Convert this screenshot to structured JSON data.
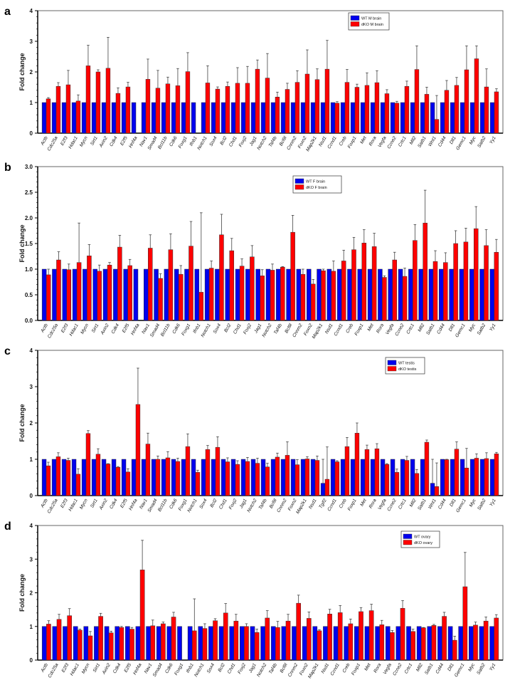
{
  "colors": {
    "wt": "#0000ee",
    "dko": "#ff0000"
  },
  "chart_data": [
    {
      "type": "bar",
      "panel": "a",
      "ylabel": "Fold change",
      "ylim": [
        0,
        4
      ],
      "yticks": [
        "0",
        "1",
        "2",
        "3",
        "4"
      ],
      "legend_placement": "top-right",
      "categories": [
        "Actb",
        "Cdc25a",
        "E2f3",
        "Hdac1",
        "Mycn",
        "Sirt1",
        "Axin2",
        "Cdk4",
        "E2f5",
        "Hnf4a",
        "Nav1",
        "Smad4",
        "Bcl11b",
        "Cdk6",
        "Foxg1",
        "Ifnb1",
        "Notch1",
        "Sox4",
        "Bcl2",
        "Chd1",
        "Foxj2",
        "Jag1",
        "Notch2",
        "Taf4b",
        "Bcl9l",
        "Cnnm2",
        "Foxn2",
        "Map2k1",
        "Nsd1",
        "Ccnd1",
        "Creb",
        "Foxp1",
        "Met",
        "Rora",
        "Vegfa",
        "Ccne2",
        "Crtc1",
        "Mll2",
        "Satb1",
        "Wnt1",
        "Cd44",
        "Dll1",
        "Gemc1",
        "Myc",
        "Satb2",
        "Yy1"
      ],
      "series": [
        {
          "name": "WT M brain",
          "values": [
            1,
            1,
            1,
            1,
            1,
            1,
            1,
            1,
            1,
            1,
            1,
            1,
            1,
            1,
            1,
            1,
            1,
            1,
            1,
            1,
            1,
            1,
            1,
            1,
            1,
            1,
            1,
            1,
            1,
            1,
            1,
            1,
            1,
            1,
            1,
            1,
            1,
            1,
            1,
            1,
            1,
            1,
            1,
            1,
            1,
            1
          ],
          "errors": []
        },
        {
          "name": "dKO M brain",
          "values": [
            1.12,
            1.53,
            1.58,
            1.05,
            2.2,
            2.0,
            2.12,
            1.3,
            1.51,
            null,
            1.76,
            1.47,
            1.61,
            1.55,
            2.01,
            null,
            1.64,
            1.44,
            1.53,
            1.63,
            1.63,
            2.09,
            1.8,
            1.18,
            1.43,
            1.66,
            1.93,
            1.75,
            2.09,
            0.98,
            1.66,
            1.5,
            1.56,
            1.65,
            1.29,
            0.98,
            1.53,
            2.08,
            1.27,
            0.45,
            1.4,
            1.56,
            2.07,
            2.43,
            1.51,
            1.35
          ],
          "errors": [
            0.04,
            0.12,
            0.47,
            0.2,
            0.67,
            0.07,
            1.01,
            0.18,
            0.15,
            null,
            0.66,
            0.58,
            0.22,
            0.56,
            0.62,
            null,
            0.56,
            0.07,
            0.14,
            0.51,
            0.55,
            0.3,
            0.8,
            0.16,
            0.2,
            0.38,
            0.79,
            0.35,
            0.94,
            0.05,
            0.42,
            0.1,
            0.41,
            0.39,
            0.13,
            0.06,
            0.17,
            0.77,
            0.23,
            0.78,
            0.32,
            0.26,
            0.78,
            0.42,
            0.59,
            0.1
          ]
        }
      ]
    },
    {
      "type": "bar",
      "panel": "b",
      "ylabel": "Fold change",
      "ylim": [
        0,
        3
      ],
      "yticks": [
        "0.0",
        "0.5",
        "1.0",
        "1.5",
        "2.0",
        "2.5",
        "3.0"
      ],
      "legend_placement": "top-center",
      "categories": [
        "Actb",
        "Cdc25a",
        "E2f3",
        "Hdac1",
        "Mycn",
        "Sirt1",
        "Axin2",
        "Cdk4",
        "E2f5",
        "Hnf4a",
        "Nav1",
        "Smad4",
        "Bcl11b",
        "Cdk6",
        "Foxg1",
        "Ifnb1",
        "Notch1",
        "Sox4",
        "Bcl2",
        "Chd1",
        "Foxj2",
        "Jag1",
        "Notch2",
        "Taf4b",
        "Bcl9l",
        "Cnnm2",
        "Foxn2",
        "Map2k1",
        "Nsd1",
        "Ccnd1",
        "Creb",
        "Foxp1",
        "Met",
        "Rora",
        "Vegfa",
        "Ccne2",
        "Crtc1",
        "Mll2",
        "Satb1",
        "Cd44",
        "Dll1",
        "Gemc1",
        "Myc",
        "Satb2",
        "Yy1"
      ],
      "series": [
        {
          "name": "WT F brain",
          "values": [
            1,
            1,
            1,
            1,
            1,
            1,
            1,
            1,
            1,
            1,
            1,
            1,
            1,
            1,
            1,
            1,
            1,
            1,
            1,
            1,
            1,
            1,
            1,
            1,
            1,
            1,
            1,
            1,
            1,
            1,
            1,
            1,
            1,
            1,
            1,
            1,
            1,
            1,
            1,
            1,
            1,
            1,
            1,
            1,
            1
          ],
          "errors": []
        },
        {
          "name": "dKO F brain",
          "values": [
            0.89,
            1.18,
            0.99,
            1.13,
            1.26,
            0.96,
            1.08,
            1.43,
            1.07,
            null,
            1.41,
            0.82,
            1.38,
            0.9,
            1.45,
            0.55,
            1.02,
            1.67,
            1.36,
            1.06,
            1.24,
            0.87,
            0.98,
            1.04,
            1.72,
            0.9,
            0.71,
            0.97,
            0.96,
            1.16,
            1.38,
            1.51,
            1.44,
            0.84,
            1.18,
            0.86,
            1.56,
            1.9,
            1.15,
            1.13,
            1.5,
            1.53,
            1.79,
            1.46,
            1.33
          ],
          "errors": [
            0.11,
            0.16,
            0.11,
            0.77,
            0.22,
            0.12,
            0.05,
            0.23,
            0.12,
            null,
            0.26,
            0.09,
            0.31,
            0.17,
            0.48,
            1.55,
            0.14,
            0.4,
            0.24,
            0.14,
            0.22,
            0.12,
            0.12,
            0.01,
            0.33,
            0.1,
            0.09,
            0.03,
            0.2,
            0.21,
            0.24,
            0.26,
            0.26,
            0.03,
            0.15,
            0.16,
            0.31,
            0.64,
            0.21,
            0.19,
            0.25,
            0.27,
            0.43,
            0.31,
            0.25
          ]
        }
      ]
    },
    {
      "type": "bar",
      "panel": "c",
      "ylabel": "Fold change",
      "ylim": [
        0,
        4
      ],
      "yticks": [
        "0",
        "1",
        "2",
        "3",
        "4"
      ],
      "legend_placement": "top-right",
      "categories": [
        "Actb",
        "Cdc25a",
        "E2f3",
        "Hdac1",
        "Mycn",
        "Sirt1",
        "Axin2",
        "Cdk4",
        "E2f5",
        "Hnf4a",
        "Nav1",
        "Smad4",
        "Bcl11b",
        "Cdk6",
        "Foxg1",
        "Notch1",
        "Sox4",
        "Bcl2",
        "Chd1",
        "Foxj2",
        "Jag1",
        "Notch2",
        "Taf4b",
        "Bcl9l",
        "Cnnm2",
        "Foxn2",
        "Map2k1",
        "Nsd1",
        "Tgif2",
        "Ccnd1",
        "Creb",
        "Foxp1",
        "Met",
        "Rora",
        "Vegfa",
        "Ccne2",
        "Crtc1",
        "Mll2",
        "Satb1",
        "Wnt1",
        "Cd44",
        "Dll1",
        "Gemc1",
        "Myc",
        "Satb2",
        "Yy1"
      ],
      "series": [
        {
          "name": "WT testis",
          "values": [
            1,
            1,
            1,
            1,
            1,
            1,
            1,
            1,
            1,
            1,
            1,
            1,
            1,
            1,
            1,
            1,
            1,
            1,
            1,
            1,
            1,
            1,
            1,
            1,
            1,
            1,
            1,
            1,
            0.34,
            1,
            1,
            1,
            1,
            1,
            1,
            1,
            1,
            1,
            1,
            0.34,
            1,
            1,
            1,
            1,
            1,
            1
          ],
          "errors": [
            0,
            0,
            0,
            0,
            0,
            0,
            0,
            0,
            0,
            0,
            0,
            0,
            0,
            0,
            0,
            0,
            0,
            0,
            0,
            0,
            0,
            0,
            0,
            0,
            0,
            0,
            0,
            0,
            0.66,
            0,
            0,
            0,
            0,
            0,
            0,
            0,
            0,
            0,
            0,
            0.66,
            0,
            0,
            0,
            0,
            0,
            0
          ]
        },
        {
          "name": "dKO testis",
          "values": [
            0.82,
            1.07,
            0.97,
            0.59,
            1.71,
            1.14,
            0.87,
            0.78,
            0.65,
            2.51,
            1.42,
            1.0,
            1.04,
            0.94,
            1.35,
            0.64,
            1.27,
            1.33,
            0.93,
            0.86,
            0.94,
            0.89,
            0.79,
            1.06,
            1.11,
            0.85,
            1.01,
            0.97,
            0.45,
            0.93,
            1.35,
            1.72,
            1.27,
            1.29,
            0.86,
            0.64,
            0.97,
            0.61,
            1.47,
            0.25,
            0.99,
            1.28,
            0.76,
            1.03,
            1.02,
            1.15
          ],
          "errors": [
            0.1,
            0.11,
            0.06,
            0.15,
            0.08,
            0.15,
            0.01,
            0.02,
            0.09,
            1.0,
            0.3,
            0.09,
            0.17,
            0.09,
            0.35,
            0.06,
            0.11,
            0.29,
            0.11,
            0.1,
            0.11,
            0.14,
            0.1,
            0.11,
            0.37,
            0.14,
            0.06,
            0.12,
            0.89,
            0.03,
            0.25,
            0.28,
            0.12,
            0.14,
            0.02,
            0.09,
            0.11,
            0.11,
            0.06,
            0.65,
            0.01,
            0.2,
            0.54,
            0.12,
            0.16,
            0.04
          ]
        }
      ]
    },
    {
      "type": "bar",
      "panel": "d",
      "ylabel": "Fold change",
      "ylim": [
        0,
        4
      ],
      "yticks": [
        "0",
        "1",
        "2",
        "3",
        "4"
      ],
      "legend_placement": "top-right",
      "categories": [
        "Actb",
        "Cdc25a",
        "E2f3",
        "Hdac1",
        "Mycn",
        "Sirt1",
        "Axin2",
        "Cdk4",
        "E2f5",
        "Hnf4a",
        "Nav1",
        "Smad4",
        "Cdk6",
        "Foxg1",
        "Ifnb1",
        "Notch1",
        "Sox4",
        "Bcl2",
        "Chd1",
        "Foxj2",
        "Jag1",
        "Notch2",
        "Taf4b",
        "Bcl9l",
        "Cnnm2",
        "Foxn2",
        "Map2k1",
        "Nsd1",
        "Ccnd1",
        "Creb",
        "Foxp1",
        "Met",
        "Rora",
        "Vegfa",
        "Ccne2",
        "Crtc1",
        "Mll2",
        "Satb1",
        "Cd44",
        "Dll1",
        "Gemc1",
        "Myc",
        "Satb2",
        "Yy1"
      ],
      "series": [
        {
          "name": "WT ovary",
          "values": [
            1,
            1,
            1,
            1,
            1,
            1,
            1,
            1,
            1,
            1,
            1,
            1,
            1,
            1,
            1,
            1,
            1,
            1,
            1,
            1,
            1,
            1,
            1,
            1,
            1,
            1,
            1,
            1,
            1,
            1,
            1,
            1,
            1,
            1,
            1,
            1,
            1,
            1,
            1,
            1,
            1,
            1,
            1,
            1
          ],
          "errors": []
        },
        {
          "name": "dKO ovary",
          "values": [
            1.07,
            1.21,
            1.32,
            0.89,
            0.72,
            1.3,
            0.81,
            0.97,
            0.92,
            2.68,
            1.02,
            1.08,
            1.28,
            null,
            0.87,
            0.94,
            1.17,
            1.4,
            1.16,
            1.0,
            0.82,
            1.25,
            0.97,
            1.16,
            1.69,
            1.24,
            0.87,
            1.37,
            1.41,
            1.08,
            1.44,
            1.47,
            1.05,
            0.82,
            1.54,
            0.85,
            0.96,
            1.03,
            1.3,
            0.59,
            2.18,
            1.04,
            1.16,
            1.25
          ],
          "errors": [
            0.1,
            0.15,
            0.21,
            0.03,
            0.13,
            0.09,
            0.05,
            0.03,
            0.05,
            0.88,
            0.17,
            0.05,
            0.14,
            null,
            0.95,
            0.14,
            0.06,
            0.28,
            0.2,
            0.08,
            0.1,
            0.22,
            0.18,
            0.2,
            0.24,
            0.19,
            0.03,
            0.14,
            0.21,
            0.14,
            0.12,
            0.19,
            0.13,
            0.06,
            0.23,
            0.07,
            0.01,
            0.03,
            0.12,
            0.12,
            1.02,
            0.09,
            0.12,
            0.1
          ]
        }
      ]
    }
  ]
}
